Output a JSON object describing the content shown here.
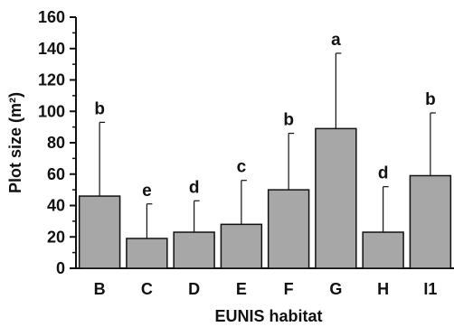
{
  "chart_data": {
    "type": "bar",
    "xlabel": "EUNIS habitat",
    "ylabel": "Plot size (m²)",
    "ylim": [
      0,
      160
    ],
    "yticks": [
      "0",
      "20",
      "40",
      "60",
      "80",
      "100",
      "120",
      "140",
      "160"
    ],
    "categories": [
      "B",
      "C",
      "D",
      "E",
      "F",
      "G",
      "H",
      "I1"
    ],
    "values": [
      46,
      19,
      23,
      28,
      50,
      89,
      23,
      59
    ],
    "error_upper": [
      93,
      41,
      43,
      56,
      86,
      137,
      52,
      99
    ],
    "significance_labels": [
      "b",
      "e",
      "d",
      "c",
      "b",
      "a",
      "d",
      "b"
    ],
    "bar_color": "#a7a7a7",
    "grid": false,
    "legend": "none"
  }
}
